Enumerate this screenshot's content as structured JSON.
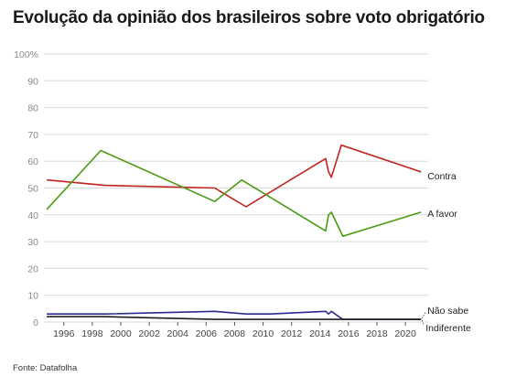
{
  "title": "Evolução da opinião dos brasileiros sobre voto obrigatório",
  "source": "Fonte: Datafolha",
  "chart_data": {
    "type": "line",
    "title": "Evolução da opinião dos brasileiros sobre voto obrigatório",
    "xlabel": "",
    "ylabel": "",
    "xlim": [
      1994.6,
      2021.6
    ],
    "ylim": [
      0,
      100
    ],
    "y_ticks": [
      "100%",
      "90",
      "80",
      "70",
      "60",
      "50",
      "40",
      "30",
      "20",
      "10",
      "0"
    ],
    "y_tick_values": [
      100,
      90,
      80,
      70,
      60,
      50,
      40,
      30,
      20,
      10,
      0
    ],
    "x_ticks": [
      "1996",
      "1998",
      "2000",
      "2002",
      "2004",
      "2006",
      "2008",
      "2010",
      "2012",
      "2014",
      "2016",
      "2018",
      "2020"
    ],
    "x_tick_values": [
      1996,
      1998,
      2000,
      2002,
      2004,
      2006,
      2008,
      2010,
      2012,
      2014,
      2016,
      2018,
      2020
    ],
    "grid": true,
    "series": [
      {
        "name": "Contra",
        "color": "#c0231d",
        "x": [
          1994.8,
          1998.9,
          2006.6,
          2008.8,
          2014.4,
          2014.6,
          2014.8,
          2015.5,
          2021.1
        ],
        "y": [
          53,
          51,
          50,
          43,
          61,
          56,
          54,
          66,
          56
        ]
      },
      {
        "name": "A favor",
        "color": "#4a9a12",
        "x": [
          1994.8,
          1998.6,
          2006.6,
          2008.5,
          2014.4,
          2014.6,
          2014.8,
          2015.6,
          2021.1
        ],
        "y": [
          42,
          64,
          45,
          53,
          34,
          40,
          41,
          32,
          41
        ]
      },
      {
        "name": "Não sabe",
        "color": "#2e2a8a",
        "x": [
          1994.8,
          1998.9,
          2006.6,
          2008.8,
          2010.5,
          2014.4,
          2014.6,
          2014.8,
          2015.6,
          2021.1
        ],
        "y": [
          3,
          3,
          4,
          3,
          3,
          4,
          3,
          4,
          1,
          1
        ]
      },
      {
        "name": "Indiferente",
        "color": "#1e1e1e",
        "x": [
          1994.8,
          1998.9,
          2006.6,
          2008.8,
          2014.4,
          2015.6,
          2021.1
        ],
        "y": [
          2,
          2,
          1,
          1,
          1,
          1,
          1
        ]
      }
    ]
  }
}
